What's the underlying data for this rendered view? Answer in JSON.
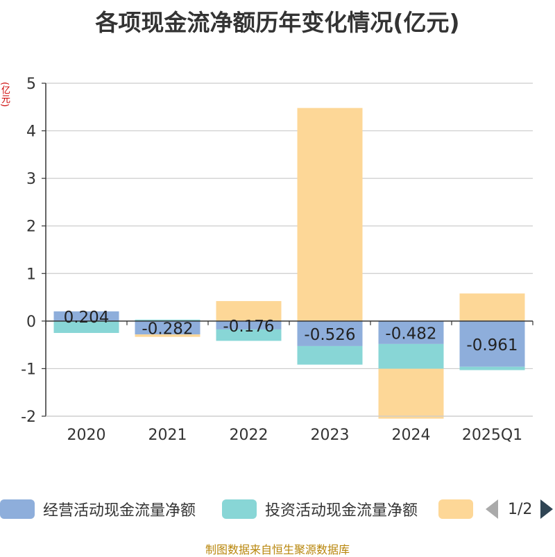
{
  "chart_data": {
    "type": "bar",
    "stacked": true,
    "title": "各项现金流净额历年变化情况(亿元)",
    "ylabel": "(亿元)",
    "xlabel": "",
    "ylim": [
      -2,
      5
    ],
    "yticks": [
      -2,
      -1,
      0,
      1,
      2,
      3,
      4,
      5
    ],
    "categories": [
      "2020",
      "2021",
      "2022",
      "2023",
      "2024",
      "2025Q1"
    ],
    "series": [
      {
        "name": "经营活动现金流量净额",
        "color": "#8eaedb",
        "values": [
          0.204,
          -0.282,
          -0.176,
          -0.526,
          -0.482,
          -0.961
        ],
        "labels": [
          "0.204",
          "-0.282",
          "-0.176",
          "-0.526",
          "-0.482",
          "-0.961"
        ]
      },
      {
        "name": "投资活动现金流量净额",
        "color": "#88d6d6",
        "values": [
          -0.25,
          0.03,
          -0.24,
          -0.39,
          -0.52,
          -0.07
        ]
      },
      {
        "name": "",
        "color": "#fdd797",
        "values": [
          0,
          -0.05,
          0.42,
          4.48,
          -1.05,
          0.58
        ]
      }
    ],
    "legend_position": "bottom"
  },
  "legend": {
    "items": [
      {
        "label": "经营活动现金流量净额",
        "color": "#8eaedb"
      },
      {
        "label": "投资活动现金流量净额",
        "color": "#88d6d6"
      },
      {
        "label": "",
        "color": "#fdd797"
      }
    ],
    "pager": "1/2"
  },
  "source": "制图数据来自恒生聚源数据库"
}
